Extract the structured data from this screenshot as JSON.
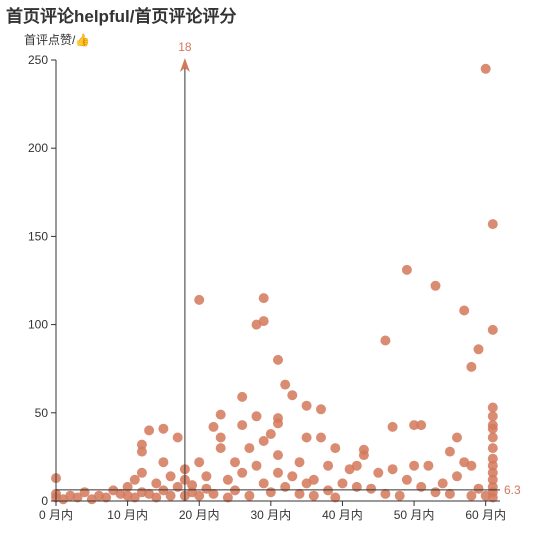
{
  "chart_data": {
    "type": "scatter",
    "title": "首页评论helpful/首页评论评分",
    "ylabel": "首评点赞/👍",
    "xlabel": "",
    "x_ticks": [
      {
        "value": 0,
        "label": "0 月内"
      },
      {
        "value": 10,
        "label": "10 月内"
      },
      {
        "value": 20,
        "label": "20 月内"
      },
      {
        "value": 30,
        "label": "30 月内"
      },
      {
        "value": 40,
        "label": "40 月内"
      },
      {
        "value": 50,
        "label": "50 月内"
      },
      {
        "value": 60,
        "label": "60 月内"
      }
    ],
    "y_ticks": [
      0,
      50,
      100,
      150,
      200,
      250
    ],
    "xlim": [
      0,
      62
    ],
    "ylim": [
      0,
      250
    ],
    "color": "#d4785a",
    "mark_line_x": {
      "value": 18,
      "label": "18"
    },
    "mark_line_y": {
      "value": 6.3,
      "label": "6.3"
    },
    "series": [
      {
        "points": [
          [
            0,
            13
          ],
          [
            0,
            2
          ],
          [
            0,
            4
          ],
          [
            1,
            1
          ],
          [
            2,
            3
          ],
          [
            3,
            2
          ],
          [
            4,
            5
          ],
          [
            5,
            1
          ],
          [
            6,
            3
          ],
          [
            7,
            2
          ],
          [
            8,
            6
          ],
          [
            9,
            4
          ],
          [
            10,
            3
          ],
          [
            10,
            8
          ],
          [
            11,
            2
          ],
          [
            11,
            12
          ],
          [
            12,
            5
          ],
          [
            12,
            16
          ],
          [
            12,
            32
          ],
          [
            12,
            28
          ],
          [
            13,
            40
          ],
          [
            13,
            4
          ],
          [
            14,
            10
          ],
          [
            14,
            2
          ],
          [
            15,
            22
          ],
          [
            15,
            6
          ],
          [
            15,
            41
          ],
          [
            16,
            3
          ],
          [
            16,
            14
          ],
          [
            17,
            36
          ],
          [
            17,
            8
          ],
          [
            18,
            3
          ],
          [
            18,
            12
          ],
          [
            18,
            18
          ],
          [
            19,
            5
          ],
          [
            19,
            9
          ],
          [
            20,
            114
          ],
          [
            20,
            22
          ],
          [
            20,
            3
          ],
          [
            21,
            7
          ],
          [
            21,
            14
          ],
          [
            22,
            42
          ],
          [
            22,
            4
          ],
          [
            23,
            49
          ],
          [
            23,
            30
          ],
          [
            23,
            36
          ],
          [
            24,
            12
          ],
          [
            24,
            2
          ],
          [
            25,
            22
          ],
          [
            25,
            6
          ],
          [
            26,
            59
          ],
          [
            26,
            43
          ],
          [
            26,
            16
          ],
          [
            27,
            30
          ],
          [
            27,
            3
          ],
          [
            28,
            100
          ],
          [
            28,
            48
          ],
          [
            28,
            20
          ],
          [
            29,
            115
          ],
          [
            29,
            102
          ],
          [
            29,
            34
          ],
          [
            29,
            10
          ],
          [
            30,
            38
          ],
          [
            30,
            5
          ],
          [
            31,
            80
          ],
          [
            31,
            47
          ],
          [
            31,
            44
          ],
          [
            31,
            26
          ],
          [
            31,
            16
          ],
          [
            32,
            66
          ],
          [
            32,
            8
          ],
          [
            33,
            60
          ],
          [
            33,
            14
          ],
          [
            34,
            22
          ],
          [
            34,
            4
          ],
          [
            35,
            54
          ],
          [
            35,
            36
          ],
          [
            35,
            10
          ],
          [
            36,
            12
          ],
          [
            36,
            3
          ],
          [
            37,
            52
          ],
          [
            37,
            36
          ],
          [
            38,
            20
          ],
          [
            38,
            6
          ],
          [
            39,
            30
          ],
          [
            39,
            2
          ],
          [
            40,
            10
          ],
          [
            41,
            18
          ],
          [
            42,
            20
          ],
          [
            42,
            8
          ],
          [
            43,
            29
          ],
          [
            43,
            26
          ],
          [
            44,
            7
          ],
          [
            45,
            16
          ],
          [
            46,
            91
          ],
          [
            46,
            4
          ],
          [
            47,
            18
          ],
          [
            47,
            42
          ],
          [
            48,
            3
          ],
          [
            49,
            131
          ],
          [
            49,
            12
          ],
          [
            50,
            43
          ],
          [
            50,
            20
          ],
          [
            51,
            43
          ],
          [
            51,
            8
          ],
          [
            52,
            20
          ],
          [
            53,
            122
          ],
          [
            53,
            5
          ],
          [
            54,
            10
          ],
          [
            55,
            28
          ],
          [
            55,
            4
          ],
          [
            56,
            36
          ],
          [
            56,
            14
          ],
          [
            57,
            108
          ],
          [
            57,
            22
          ],
          [
            58,
            76
          ],
          [
            58,
            20
          ],
          [
            58,
            3
          ],
          [
            59,
            86
          ],
          [
            59,
            7
          ],
          [
            60,
            245
          ],
          [
            60,
            3
          ],
          [
            61,
            157
          ],
          [
            61,
            97
          ],
          [
            61,
            53
          ],
          [
            61,
            48
          ],
          [
            61,
            43
          ],
          [
            61,
            41
          ],
          [
            61,
            36
          ],
          [
            61,
            30
          ],
          [
            61,
            24
          ],
          [
            61,
            20
          ],
          [
            61,
            16
          ],
          [
            61,
            12
          ],
          [
            61,
            8
          ],
          [
            61,
            5
          ],
          [
            61,
            2
          ]
        ]
      }
    ]
  }
}
